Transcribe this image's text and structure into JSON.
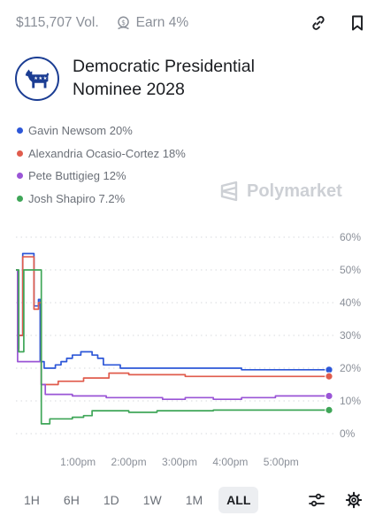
{
  "market": {
    "volume": "$115,707 Vol.",
    "earn": "Earn 4%",
    "title": "Democratic Presidential Nominee 2028"
  },
  "icons": {
    "link": "link-icon",
    "bookmark": "bookmark-icon",
    "earn": "earn-icon",
    "logo": "donkey-logo-icon",
    "settings": "gear-icon",
    "filters": "sliders-icon"
  },
  "legend": [
    {
      "label": "Gavin Newsom 20%",
      "color": "#2d57d8"
    },
    {
      "label": "Alexandria Ocasio-Cortez 18%",
      "color": "#e05c4d"
    },
    {
      "label": "Pete Buttigieg 12%",
      "color": "#9a55d6"
    },
    {
      "label": "Josh Shapiro 7.2%",
      "color": "#3fa658"
    }
  ],
  "watermark": "Polymarket",
  "chart_data": {
    "type": "line",
    "y_ticks": [
      "60%",
      "50%",
      "40%",
      "30%",
      "20%",
      "10%",
      "0%"
    ],
    "x_ticks": [
      "1:00pm",
      "2:00pm",
      "3:00pm",
      "4:00pm",
      "5:00pm"
    ],
    "ylim": [
      0,
      60
    ],
    "grid": true,
    "series": [
      {
        "name": "Gavin Newsom",
        "color": "#2d57d8",
        "values": [
          [
            0,
            50
          ],
          [
            0.03,
            26
          ],
          [
            0.05,
            30
          ],
          [
            0.1,
            30
          ],
          [
            0.12,
            55
          ],
          [
            0.3,
            55
          ],
          [
            0.32,
            39
          ],
          [
            0.38,
            39
          ],
          [
            0.4,
            41
          ],
          [
            0.43,
            22
          ],
          [
            0.5,
            20
          ],
          [
            0.58,
            20
          ],
          [
            0.7,
            21
          ],
          [
            0.8,
            22
          ],
          [
            0.9,
            23
          ],
          [
            1.0,
            24
          ],
          [
            1.15,
            25
          ],
          [
            1.25,
            25
          ],
          [
            1.35,
            24
          ],
          [
            1.45,
            23
          ],
          [
            1.55,
            21
          ],
          [
            1.7,
            21
          ],
          [
            1.85,
            20
          ],
          [
            2.0,
            20
          ],
          [
            2.3,
            20
          ],
          [
            2.7,
            20
          ],
          [
            3.0,
            20
          ],
          [
            3.3,
            20
          ],
          [
            3.7,
            20
          ],
          [
            4.0,
            19.5
          ],
          [
            4.2,
            19.5
          ],
          [
            4.5,
            19.5
          ],
          [
            5.0,
            19.5
          ],
          [
            5.3,
            19.5
          ],
          [
            5.55,
            19.5
          ]
        ]
      },
      {
        "name": "Alexandria Ocasio-Cortez",
        "color": "#e05c4d",
        "values": [
          [
            0,
            50
          ],
          [
            0.03,
            26
          ],
          [
            0.05,
            30
          ],
          [
            0.1,
            30
          ],
          [
            0.12,
            54
          ],
          [
            0.3,
            54
          ],
          [
            0.32,
            38
          ],
          [
            0.38,
            38
          ],
          [
            0.4,
            40
          ],
          [
            0.45,
            15
          ],
          [
            0.6,
            15
          ],
          [
            0.75,
            16
          ],
          [
            1.0,
            16
          ],
          [
            1.2,
            17
          ],
          [
            1.5,
            17
          ],
          [
            1.65,
            18.5
          ],
          [
            2.0,
            18
          ],
          [
            2.5,
            18
          ],
          [
            3.0,
            17.5
          ],
          [
            3.5,
            17.5
          ],
          [
            4.0,
            17.5
          ],
          [
            4.5,
            17.5
          ],
          [
            5.0,
            17.5
          ],
          [
            5.55,
            17.5
          ]
        ]
      },
      {
        "name": "Pete Buttigieg",
        "color": "#9a55d6",
        "values": [
          [
            0,
            50
          ],
          [
            0.03,
            22
          ],
          [
            0.35,
            22
          ],
          [
            0.38,
            22
          ],
          [
            0.45,
            15
          ],
          [
            0.52,
            12
          ],
          [
            0.7,
            12
          ],
          [
            1.0,
            11.5
          ],
          [
            1.3,
            11.5
          ],
          [
            1.6,
            11
          ],
          [
            2.0,
            11
          ],
          [
            2.3,
            11
          ],
          [
            2.6,
            10.5
          ],
          [
            3.0,
            11
          ],
          [
            3.2,
            11
          ],
          [
            3.5,
            10.5
          ],
          [
            4.0,
            11
          ],
          [
            4.3,
            11
          ],
          [
            4.6,
            11.5
          ],
          [
            5.0,
            11.5
          ],
          [
            5.55,
            11.5
          ]
        ]
      },
      {
        "name": "Josh Shapiro",
        "color": "#3fa658",
        "values": [
          [
            0,
            50
          ],
          [
            0.05,
            25
          ],
          [
            0.1,
            25
          ],
          [
            0.14,
            50
          ],
          [
            0.35,
            50
          ],
          [
            0.38,
            50
          ],
          [
            0.45,
            3
          ],
          [
            0.55,
            3
          ],
          [
            0.6,
            4.5
          ],
          [
            0.8,
            4.5
          ],
          [
            1.0,
            5
          ],
          [
            1.2,
            5.5
          ],
          [
            1.35,
            7
          ],
          [
            1.5,
            7
          ],
          [
            1.8,
            7
          ],
          [
            2.0,
            6.5
          ],
          [
            2.5,
            7
          ],
          [
            3.0,
            7
          ],
          [
            3.2,
            7
          ],
          [
            3.5,
            7.2
          ],
          [
            4.0,
            7.2
          ],
          [
            4.5,
            7.2
          ],
          [
            5.0,
            7.2
          ],
          [
            5.55,
            7.2
          ]
        ]
      }
    ]
  },
  "timeframes": [
    "1H",
    "6H",
    "1D",
    "1W",
    "1M",
    "ALL"
  ],
  "active_timeframe": "ALL"
}
